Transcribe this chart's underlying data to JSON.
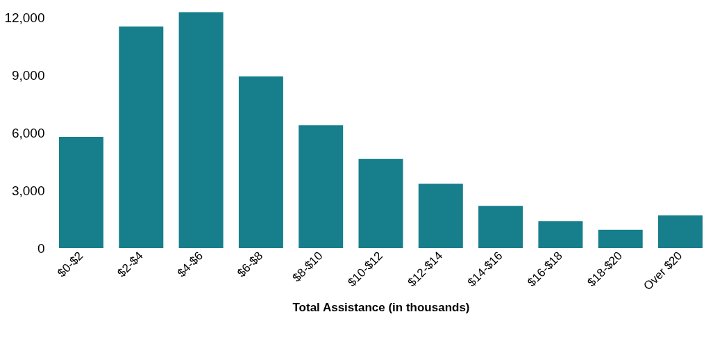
{
  "chart_data": {
    "type": "bar",
    "xlabel": "Total Assistance (in thousands)",
    "categories": [
      "$0-$2",
      "$2-$4",
      "$4-$6",
      "$6-$8",
      "$8-$10",
      "$10-$12",
      "$12-$14",
      "$14-$16",
      "$16-$18",
      "$18-$20",
      "Over $20"
    ],
    "values": [
      5800,
      11550,
      12300,
      8950,
      6400,
      4650,
      3350,
      2200,
      1400,
      950,
      1700
    ],
    "color": "#167f8b",
    "ylim": [
      0,
      12500
    ],
    "yticks": [
      {
        "value": 0,
        "label": "0"
      },
      {
        "value": 3000,
        "label": "3,000"
      },
      {
        "value": 6000,
        "label": "6,000"
      },
      {
        "value": 9000,
        "label": "9,000"
      },
      {
        "value": 12000,
        "label": "12,000"
      }
    ],
    "grid": false
  }
}
